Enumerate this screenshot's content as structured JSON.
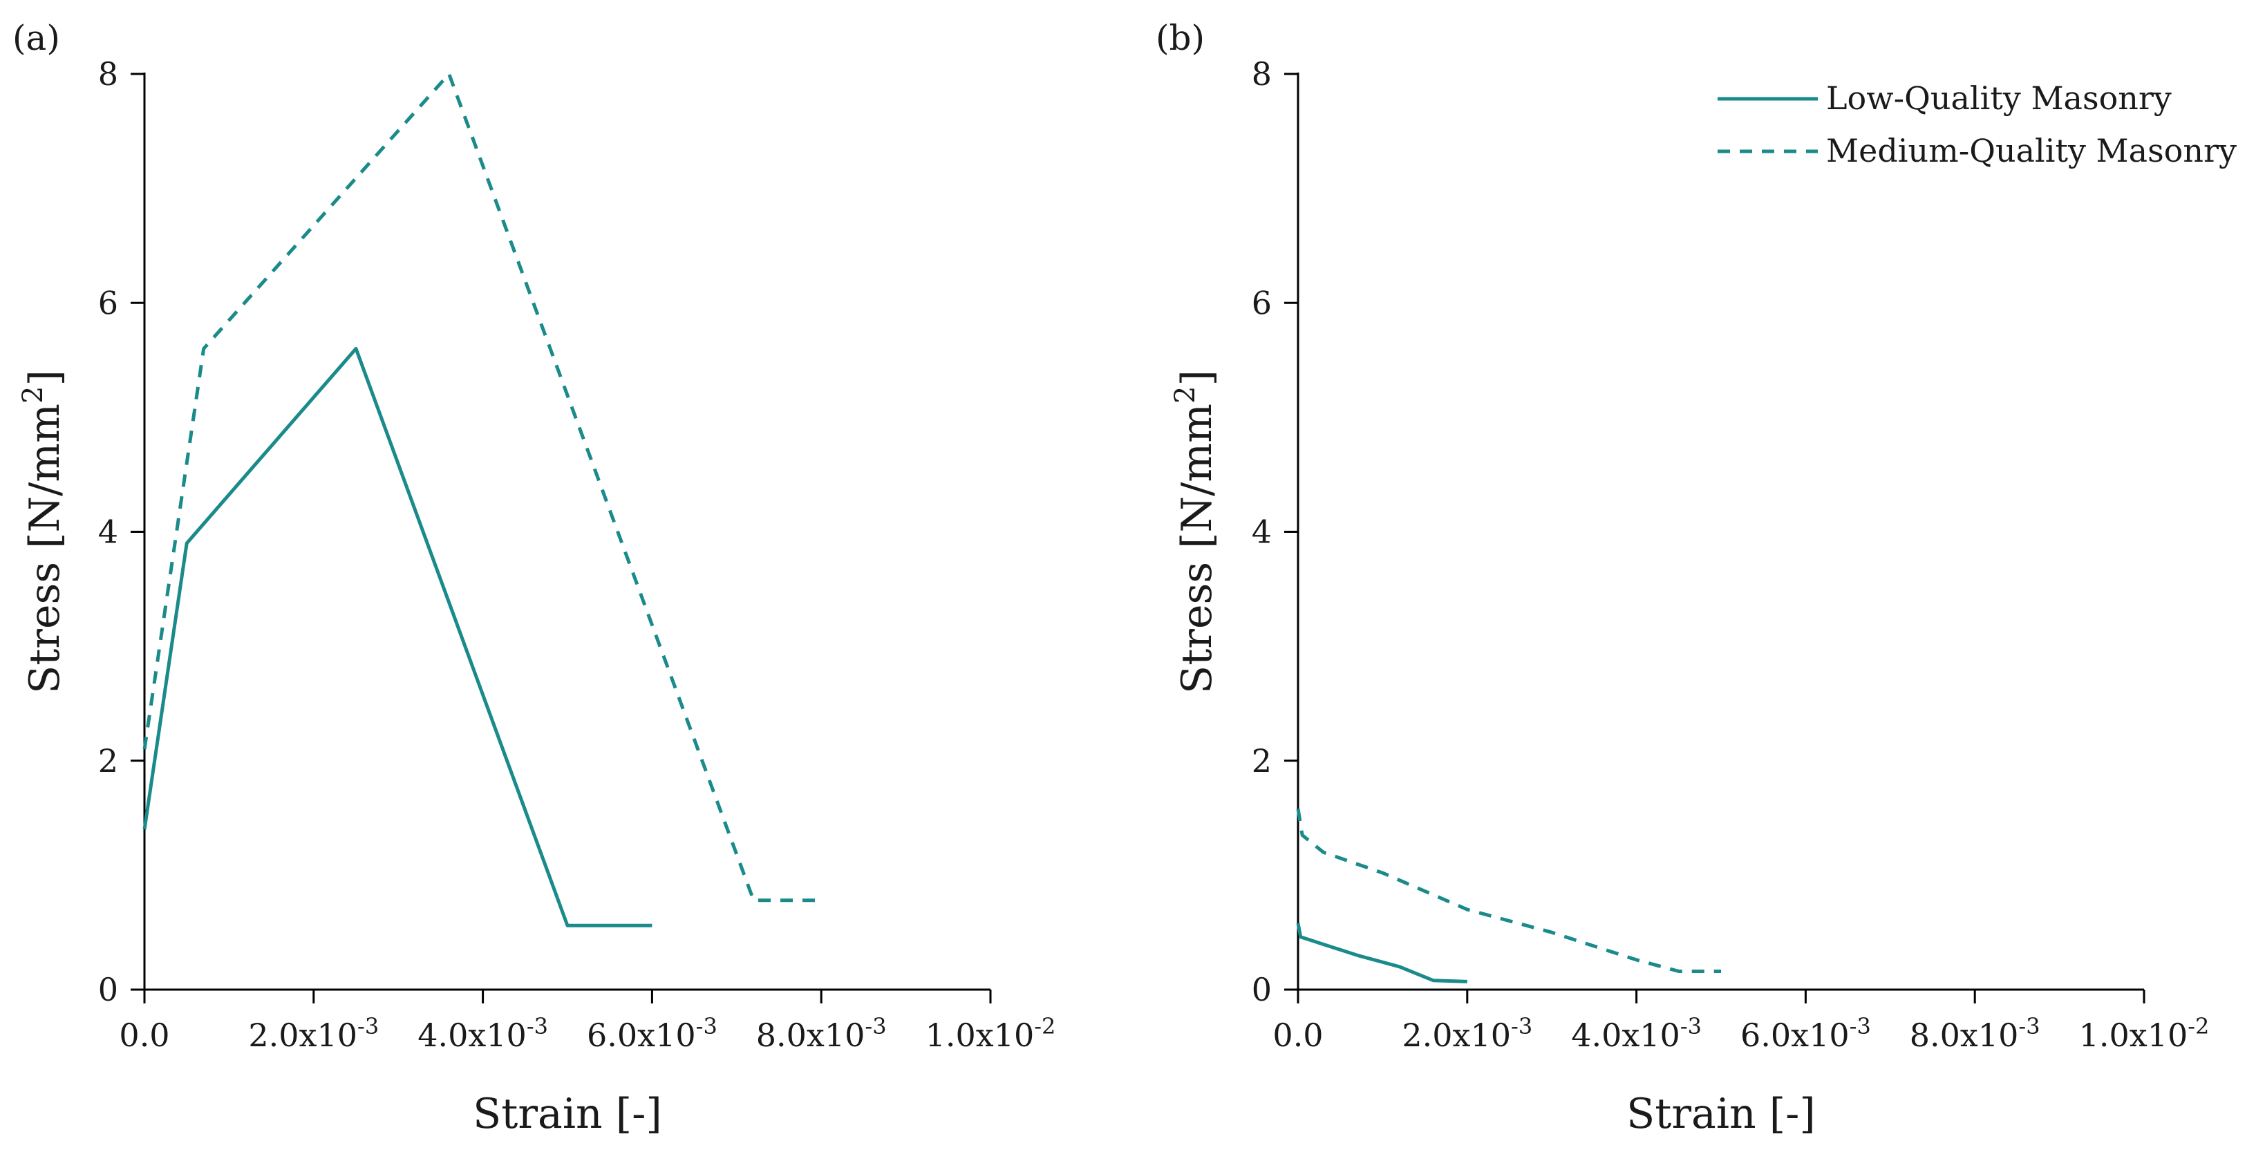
{
  "colors": {
    "series": "#1a8a8a",
    "axis": "#000000",
    "text": "#1a1a1a"
  },
  "chart_data": [
    {
      "type": "line",
      "panel_label": "(a)",
      "xlabel": "Strain [-]",
      "ylabel": "Stress [N/mm",
      "ylabel_sup": "2",
      "ylabel_end": "]",
      "xlim": [
        0,
        0.01
      ],
      "ylim": [
        0,
        8
      ],
      "x_ticks": [
        {
          "value": 0,
          "base": "0.0",
          "exp": ""
        },
        {
          "value": 0.002,
          "base": "2.0x10",
          "exp": "-3"
        },
        {
          "value": 0.004,
          "base": "4.0x10",
          "exp": "-3"
        },
        {
          "value": 0.006,
          "base": "6.0x10",
          "exp": "-3"
        },
        {
          "value": 0.008,
          "base": "8.0x10",
          "exp": "-3"
        },
        {
          "value": 0.01,
          "base": "1.0x10",
          "exp": "-2"
        }
      ],
      "y_ticks": [
        {
          "value": 0,
          "label": "0"
        },
        {
          "value": 2,
          "label": "2"
        },
        {
          "value": 4,
          "label": "4"
        },
        {
          "value": 6,
          "label": "6"
        },
        {
          "value": 8,
          "label": "8"
        }
      ],
      "series": [
        {
          "name": "Low-Quality Masonry",
          "style": "solid",
          "points": [
            [
              0,
              1.4
            ],
            [
              0.0005,
              3.9
            ],
            [
              0.0025,
              5.6
            ],
            [
              0.005,
              0.56
            ],
            [
              0.006,
              0.56
            ]
          ]
        },
        {
          "name": "Medium-Quality Masonry",
          "style": "dashed",
          "points": [
            [
              0,
              2.1
            ],
            [
              0.0007,
              5.6
            ],
            [
              0.0036,
              8.0
            ],
            [
              0.0072,
              0.78
            ],
            [
              0.008,
              0.78
            ]
          ]
        }
      ]
    },
    {
      "type": "line",
      "panel_label": "(b)",
      "xlabel": "Strain [-]",
      "ylabel": "Stress [N/mm",
      "ylabel_sup": "2",
      "ylabel_end": "]",
      "xlim": [
        0,
        0.01
      ],
      "ylim": [
        0,
        8
      ],
      "x_ticks": [
        {
          "value": 0,
          "base": "0.0",
          "exp": ""
        },
        {
          "value": 0.002,
          "base": "2.0x10",
          "exp": "-3"
        },
        {
          "value": 0.004,
          "base": "4.0x10",
          "exp": "-3"
        },
        {
          "value": 0.006,
          "base": "6.0x10",
          "exp": "-3"
        },
        {
          "value": 0.008,
          "base": "8.0x10",
          "exp": "-3"
        },
        {
          "value": 0.01,
          "base": "1.0x10",
          "exp": "-2"
        }
      ],
      "y_ticks": [
        {
          "value": 0,
          "label": "0"
        },
        {
          "value": 2,
          "label": "2"
        },
        {
          "value": 4,
          "label": "4"
        },
        {
          "value": 6,
          "label": "6"
        },
        {
          "value": 8,
          "label": "8"
        }
      ],
      "legend": {
        "location": "top-right"
      },
      "series": [
        {
          "name": "Low-Quality Masonry",
          "style": "solid",
          "points": [
            [
              0,
              0.58
            ],
            [
              3e-05,
              0.46
            ],
            [
              0.0007,
              0.3
            ],
            [
              0.0012,
              0.2
            ],
            [
              0.0016,
              0.08
            ],
            [
              0.002,
              0.07
            ]
          ]
        },
        {
          "name": "Medium-Quality Masonry",
          "style": "dashed",
          "points": [
            [
              0,
              1.58
            ],
            [
              5e-05,
              1.35
            ],
            [
              0.0003,
              1.2
            ],
            [
              0.001,
              1.02
            ],
            [
              0.002,
              0.7
            ],
            [
              0.003,
              0.5
            ],
            [
              0.004,
              0.26
            ],
            [
              0.0045,
              0.16
            ],
            [
              0.005,
              0.16
            ]
          ]
        }
      ]
    }
  ]
}
